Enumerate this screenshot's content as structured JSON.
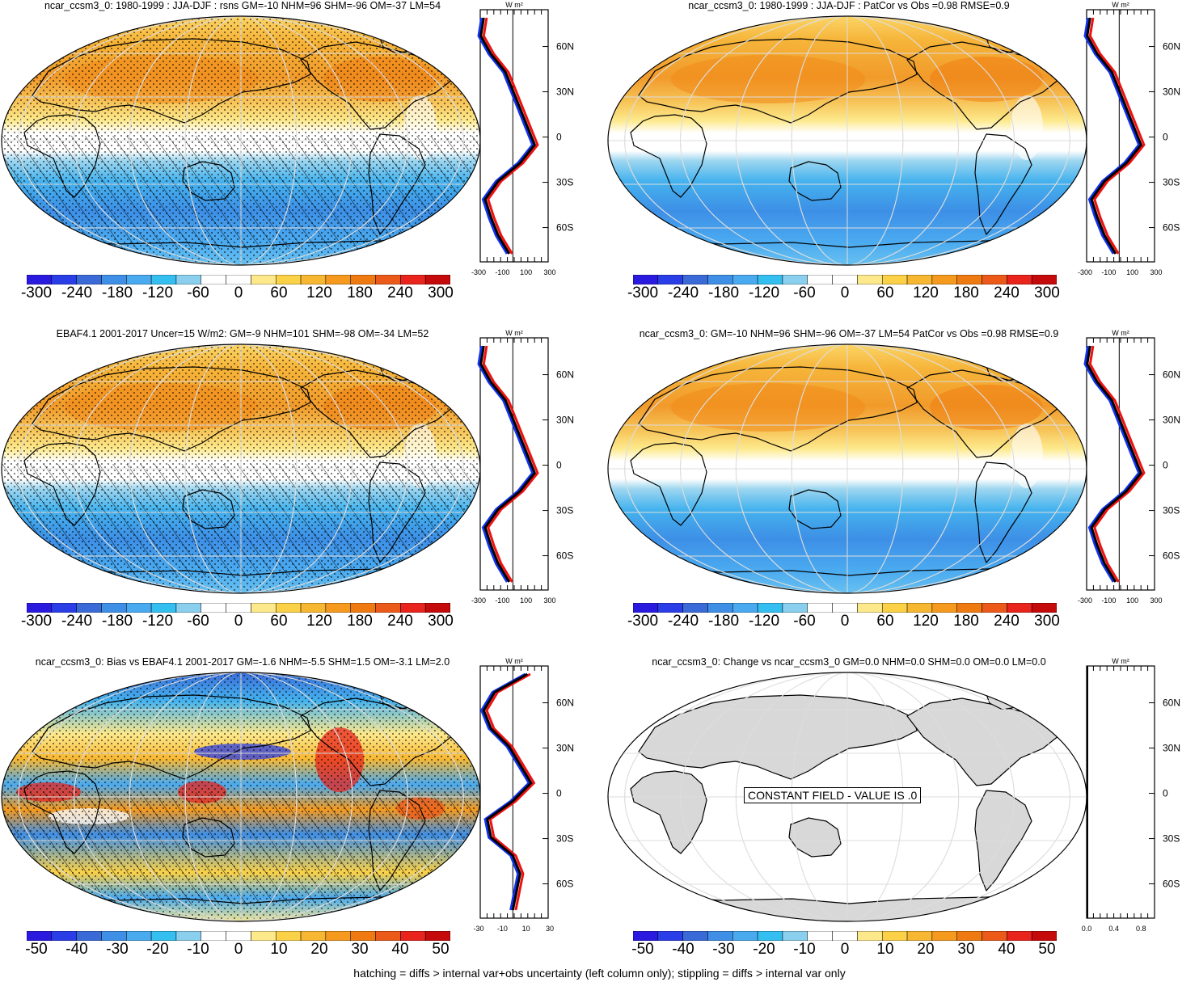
{
  "panels": [
    {
      "id": "p1",
      "title": "ncar_ccsm3_0: 1980-1999 : JJA-DJF : rsns GM=-10 NHM=96 SHM=-96 OM=-37 LM=54",
      "colorbar_labels": [
        "-300",
        "-240",
        "-180",
        "-120",
        "-60",
        "0",
        "60",
        "120",
        "180",
        "240",
        "300"
      ],
      "profile": {
        "unit": "W m²",
        "xticks": [
          "-300",
          "-100",
          "100",
          "300"
        ],
        "lat_labels": [
          "60N",
          "30N",
          "0",
          "30S",
          "60S"
        ]
      },
      "hatched": true
    },
    {
      "id": "p2",
      "title": "ncar_ccsm3_0: 1980-1999 : JJA-DJF : PatCor vs Obs =0.98 RMSE=0.9",
      "colorbar_labels": [
        "-300",
        "-240",
        "-180",
        "-120",
        "-60",
        "0",
        "60",
        "120",
        "180",
        "240",
        "300"
      ],
      "profile": {
        "unit": "W m²",
        "xticks": [
          "-300",
          "-100",
          "100",
          "300"
        ],
        "lat_labels": [
          "60N",
          "30N",
          "0",
          "30S",
          "60S"
        ]
      },
      "hatched": false
    },
    {
      "id": "p3",
      "title": "EBAF4.1 2001-2017 Uncer=15 W/m2: GM=-9 NHM=101 SHM=-98 OM=-34 LM=52",
      "colorbar_labels": [
        "-300",
        "-240",
        "-180",
        "-120",
        "-60",
        "0",
        "60",
        "120",
        "180",
        "240",
        "300"
      ],
      "profile": {
        "unit": "W m²",
        "xticks": [
          "-300",
          "-100",
          "100",
          "300"
        ],
        "lat_labels": [
          "60N",
          "30N",
          "0",
          "30S",
          "60S"
        ]
      },
      "hatched": true
    },
    {
      "id": "p4",
      "title": "ncar_ccsm3_0: GM=-10 NHM=96 SHM=-96 OM=-37 LM=54 PatCor vs Obs =0.98 RMSE=0.9",
      "colorbar_labels": [
        "-300",
        "-240",
        "-180",
        "-120",
        "-60",
        "0",
        "60",
        "120",
        "180",
        "240",
        "300"
      ],
      "profile": {
        "unit": "W m²",
        "xticks": [
          "-300",
          "-100",
          "100",
          "300"
        ],
        "lat_labels": [
          "60N",
          "30N",
          "0",
          "30S",
          "60S"
        ]
      },
      "hatched": false
    },
    {
      "id": "p5",
      "title": "ncar_ccsm3_0: Bias vs EBAF4.1 2001-2017 GM=-1.6 NHM=-5.5 SHM=1.5 OM=-3.1 LM=2.0",
      "colorbar_labels": [
        "-50",
        "-40",
        "-30",
        "-20",
        "-10",
        "0",
        "10",
        "20",
        "30",
        "40",
        "50"
      ],
      "profile": {
        "unit": "W m²",
        "xticks": [
          "-30",
          "-10",
          "10",
          "30"
        ],
        "lat_labels": [
          "60N",
          "30N",
          "0",
          "30S",
          "60S"
        ]
      },
      "hatched": true
    },
    {
      "id": "p6",
      "title": "ncar_ccsm3_0: Change vs ncar_ccsm3_0 GM=0.0 NHM=0.0 SHM=0.0 OM=0.0 LM=0.0",
      "colorbar_labels": [
        "-50",
        "-40",
        "-30",
        "-20",
        "-10",
        "0",
        "10",
        "20",
        "30",
        "40",
        "50"
      ],
      "profile": {
        "unit": "W m²",
        "xticks": [
          "0.0",
          "0.4",
          "0.8"
        ],
        "lat_labels": [
          "60N",
          "30N",
          "0",
          "30S",
          "60S"
        ]
      },
      "hatched": false,
      "constant_label": "CONSTANT FIELD - VALUE IS .0"
    }
  ],
  "colorbar_colors": [
    "#2a1ae0",
    "#2a3ee8",
    "#3a6ad8",
    "#3f8fe6",
    "#4aaaf0",
    "#34bff0",
    "#8ad0ee",
    "#ffffff",
    "#ffffff",
    "#fde98c",
    "#fbd147",
    "#f7b733",
    "#f59a1f",
    "#f07a12",
    "#ec5a1a",
    "#e8241c",
    "#c40a0a"
  ],
  "profile_colors": {
    "model": "#ee1111",
    "obs": "#1133ee",
    "mean": "#000000"
  },
  "footnote": "hatching = diffs > internal var+obs uncertainty (left column only); stippling = diffs > internal var only"
}
